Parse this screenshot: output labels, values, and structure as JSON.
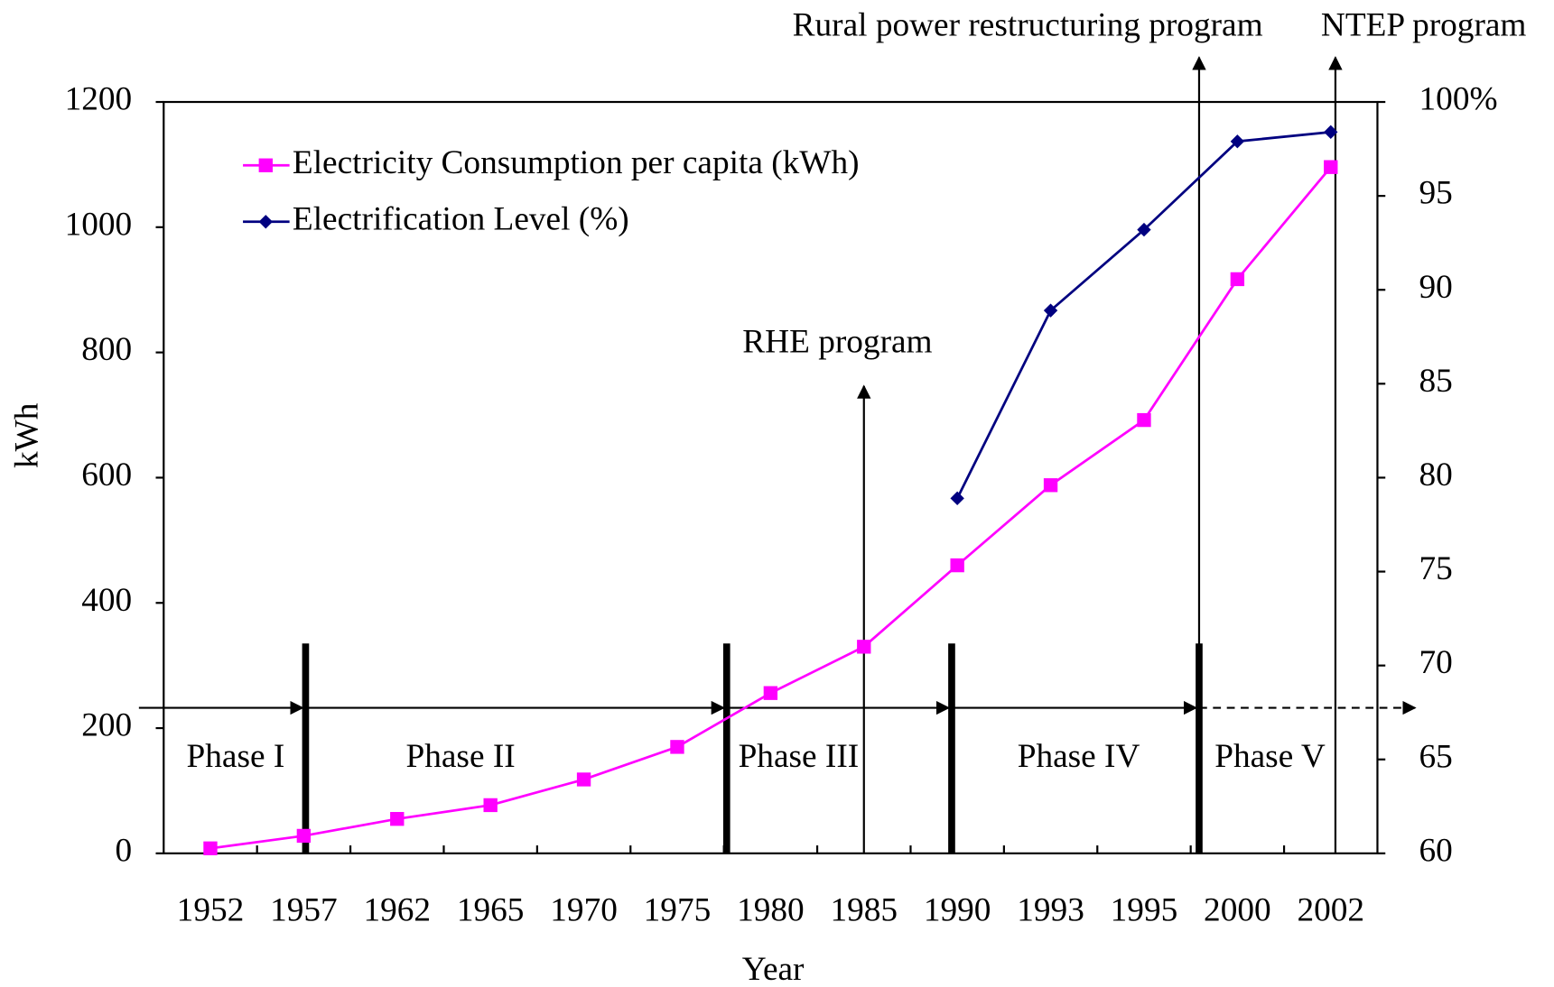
{
  "chart_data": {
    "type": "line",
    "x_label": "Year",
    "y_label": "kWh",
    "categories": [
      "1952",
      "1957",
      "1962",
      "1965",
      "1970",
      "1975",
      "1980",
      "1985",
      "1990",
      "1993",
      "1995",
      "2000",
      "2002"
    ],
    "series": [
      {
        "name": "Electricity Consumption per capita (kWh)",
        "color": "#ff00ff",
        "marker": "square",
        "values": [
          8,
          28,
          55,
          77,
          118,
          170,
          256,
          330,
          460,
          588,
          692,
          917,
          1096
        ]
      },
      {
        "name": "Electrification Level (%)",
        "color": "#000080",
        "marker": "diamond",
        "axis": "y2",
        "values": [
          null,
          null,
          null,
          null,
          null,
          null,
          null,
          null,
          78.9,
          88.9,
          93.2,
          97.9,
          98.4
        ]
      }
    ],
    "ylim": [
      0,
      1200
    ],
    "yticks": [
      0,
      200,
      400,
      600,
      800,
      1000,
      1200
    ],
    "y2lim": [
      60,
      100
    ],
    "y2ticks": [
      60,
      65,
      70,
      75,
      80,
      85,
      90,
      95,
      {
        "value": 100,
        "label": "100%"
      }
    ],
    "legend": "upper left",
    "phases": [
      "Phase I",
      "Phase II",
      "Phase III",
      "Phase IV",
      "Phase V"
    ],
    "programs": [
      "RHE program",
      "Rural power restructuring program",
      "NTEP program"
    ]
  }
}
